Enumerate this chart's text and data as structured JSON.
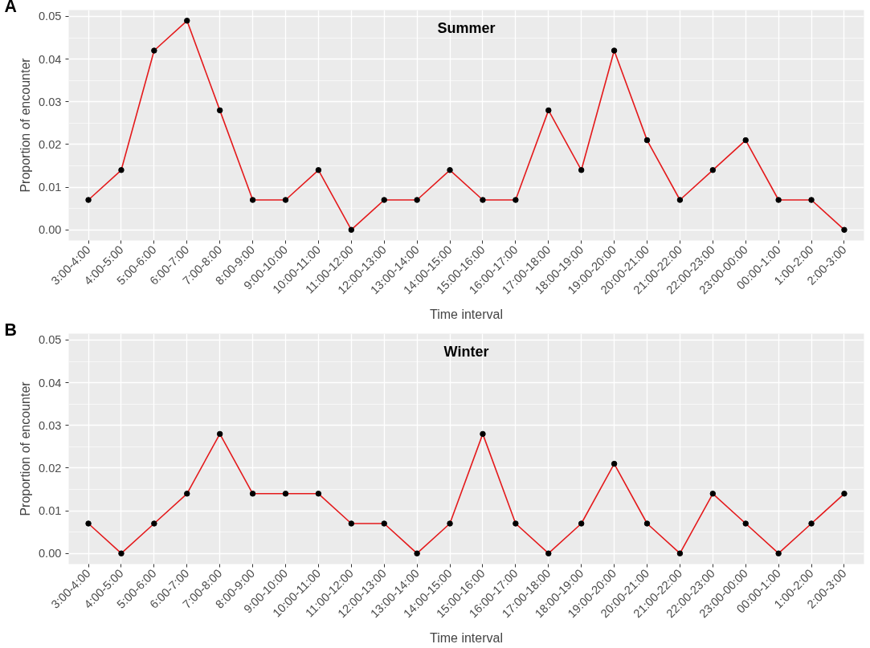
{
  "chart_data": [
    {
      "type": "line",
      "title": "Summer",
      "xlabel": "Time interval",
      "ylabel": "Proportion of encounter",
      "annotations": [
        "A"
      ],
      "categories": [
        "3:00-4:00",
        "4:00-5:00",
        "5:00-6:00",
        "6:00-7:00",
        "7:00-8:00",
        "8:00-9:00",
        "9:00-10:00",
        "10:00-11:00",
        "11:00-12:00",
        "12:00-13:00",
        "13:00-14:00",
        "14:00-15:00",
        "15:00-16:00",
        "16:00-17:00",
        "17:00-18:00",
        "18:00-19:00",
        "19:00-20:00",
        "20:00-21:00",
        "21:00-22:00",
        "22:00-23:00",
        "23:00-00:00",
        "00:00-1:00",
        "1:00-2:00",
        "2:00-3:00"
      ],
      "series": [
        {
          "color": "#e41a1c",
          "values": [
            0.007,
            0.014,
            0.042,
            0.049,
            0.028,
            0.007,
            0.007,
            0.014,
            0,
            0.007,
            0.007,
            0.014,
            0.007,
            0.007,
            0.028,
            0.014,
            0.042,
            0.021,
            0.007,
            0.014,
            0.021,
            0.007,
            0.007,
            0
          ]
        }
      ],
      "ylim": [
        -0.0025,
        0.0515
      ],
      "yticks": [
        {
          "value": 0,
          "label": "0.00"
        },
        {
          "value": 0.01,
          "label": "0.01"
        },
        {
          "value": 0.02,
          "label": "0.02"
        },
        {
          "value": 0.03,
          "label": "0.03"
        },
        {
          "value": 0.04,
          "label": "0.04"
        },
        {
          "value": 0.05,
          "label": "0.05"
        }
      ],
      "grid": true,
      "marker": "circle",
      "line_style": "solid"
    },
    {
      "type": "line",
      "title": "Winter",
      "xlabel": "Time interval",
      "ylabel": "Proportion of encounter",
      "annotations": [
        "B"
      ],
      "categories": [
        "3:00-4:00",
        "4:00-5:00",
        "5:00-6:00",
        "6:00-7:00",
        "7:00-8:00",
        "8:00-9:00",
        "9:00-10:00",
        "10:00-11:00",
        "11:00-12:00",
        "12:00-13:00",
        "13:00-14:00",
        "14:00-15:00",
        "15:00-16:00",
        "16:00-17:00",
        "17:00-18:00",
        "18:00-19:00",
        "19:00-20:00",
        "20:00-21:00",
        "21:00-22:00",
        "22:00-23:00",
        "23:00-00:00",
        "00:00-1:00",
        "1:00-2:00",
        "2:00-3:00"
      ],
      "series": [
        {
          "color": "#e41a1c",
          "values": [
            0.007,
            0,
            0.007,
            0.014,
            0.028,
            0.014,
            0.014,
            0.014,
            0.007,
            0.007,
            0,
            0.007,
            0.028,
            0.007,
            0,
            0.007,
            0.021,
            0.007,
            0,
            0.014,
            0.007,
            0,
            0.007,
            0.014
          ]
        }
      ],
      "ylim": [
        -0.0025,
        0.0515
      ],
      "yticks": [
        {
          "value": 0,
          "label": "0.00"
        },
        {
          "value": 0.01,
          "label": "0.01"
        },
        {
          "value": 0.02,
          "label": "0.02"
        },
        {
          "value": 0.03,
          "label": "0.03"
        },
        {
          "value": 0.04,
          "label": "0.04"
        },
        {
          "value": 0.05,
          "label": "0.05"
        }
      ],
      "grid": true,
      "marker": "circle",
      "line_style": "solid"
    }
  ]
}
